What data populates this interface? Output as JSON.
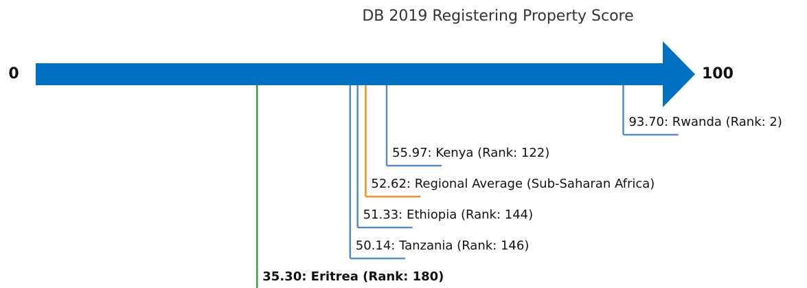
{
  "chart_data": {
    "type": "scale",
    "title": "DB 2019 Registering Property Score",
    "xlim": [
      0,
      100
    ],
    "xticks": [
      0,
      100
    ],
    "arrow_color": "#0070c0",
    "values": [
      93.7,
      55.97,
      52.62,
      51.33,
      50.14,
      35.3
    ],
    "value_labels": [
      "93.70: Rwanda (Rank: 2)",
      "55.97: Kenya (Rank: 122)",
      "52.62: Regional Average (Sub-Saharan Africa)",
      "51.33: Ethiopia (Rank: 144)",
      "50.14: Tanzania (Rank: 146)",
      "35.30: Eritrea (Rank: 180)"
    ],
    "colors": [
      "#5a88c2",
      "#5a88c2",
      "#f28e2b",
      "#5a88c2",
      "#5a88c2",
      "#3a9a4a"
    ],
    "bold": [
      false,
      false,
      false,
      false,
      false,
      true
    ]
  }
}
